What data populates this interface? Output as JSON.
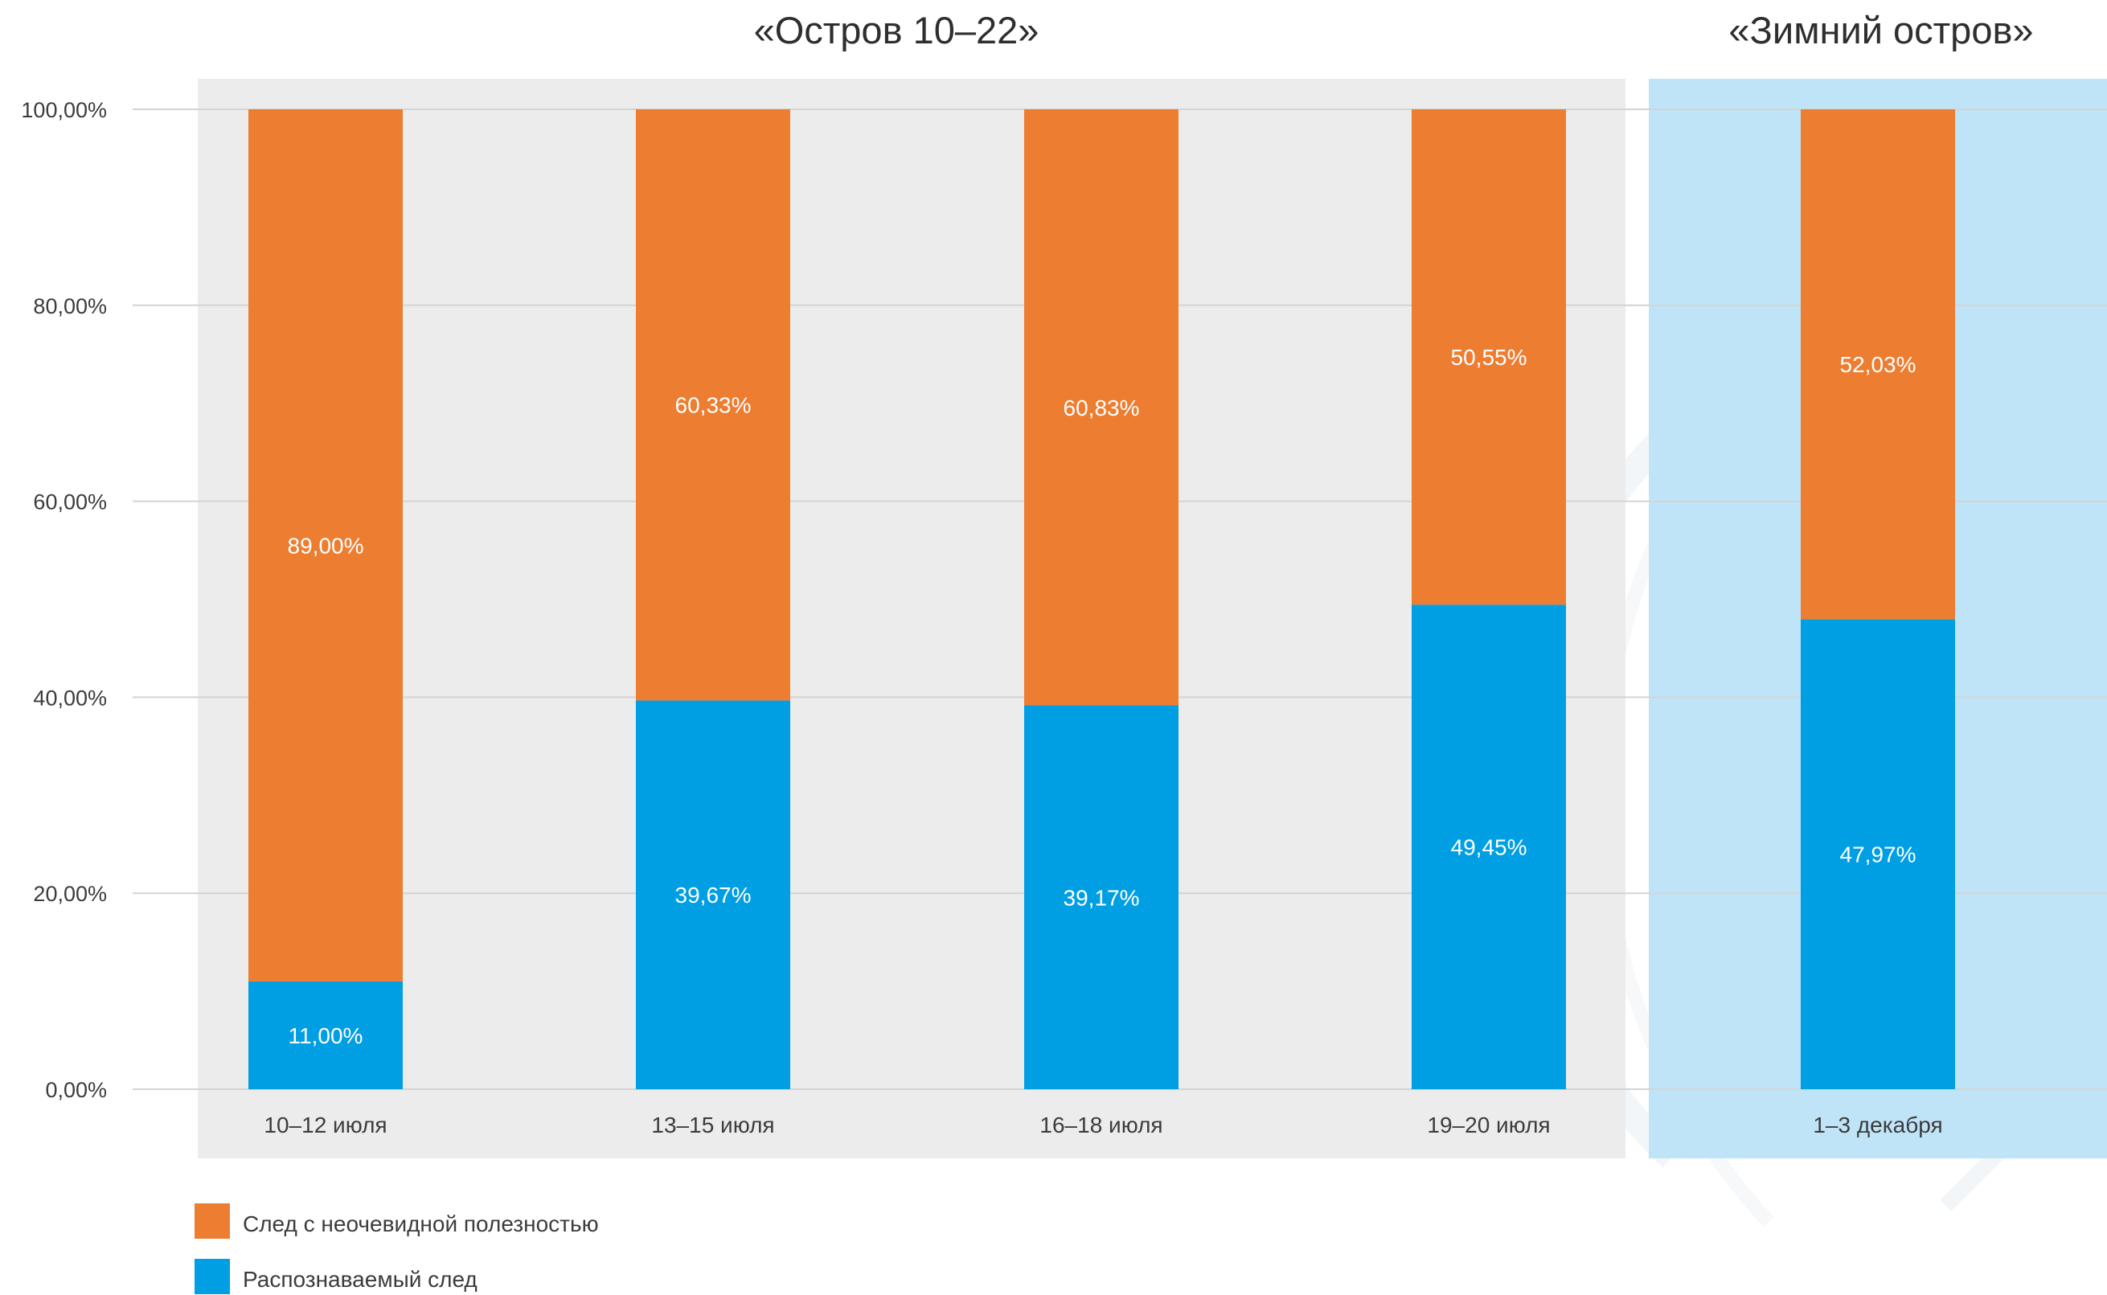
{
  "chart_data": {
    "type": "bar",
    "stacked": true,
    "categories": [
      "10–12 июля",
      "13–15 июля",
      "16–18 июля",
      "19–20 июля",
      "1–3 декабря"
    ],
    "series": [
      {
        "name": "Распознаваемый след",
        "color": "#009fe3",
        "values": [
          11.0,
          39.67,
          39.17,
          49.45,
          47.97
        ],
        "labels": [
          "11,00%",
          "39,67%",
          "39,17%",
          "49,45%",
          "47,97%"
        ]
      },
      {
        "name": "След с неочевидной полезностью",
        "color": "#ed7d31",
        "values": [
          89.0,
          60.33,
          60.83,
          50.55,
          52.03
        ],
        "labels": [
          "89,00%",
          "60,33%",
          "60,83%",
          "50,55%",
          "52,03%"
        ]
      }
    ],
    "ylim": [
      0,
      100
    ],
    "yticks": [
      0,
      20,
      40,
      60,
      80,
      100
    ],
    "ytick_labels": [
      "0,00%",
      "20,00%",
      "40,00%",
      "60,00%",
      "80,00%",
      "100,00%"
    ],
    "groups": [
      {
        "title": "«Остров 10–22»",
        "categories": [
          0,
          1,
          2,
          3
        ],
        "background": "#ececec"
      },
      {
        "title": "«Зимний остров»",
        "categories": [
          4
        ],
        "background": "#c0e4f7"
      }
    ],
    "legend": {
      "placement": "bottom-left",
      "entries": [
        "След с неочевидной полезностью",
        "Распознаваемый след"
      ]
    },
    "grid": true
  }
}
